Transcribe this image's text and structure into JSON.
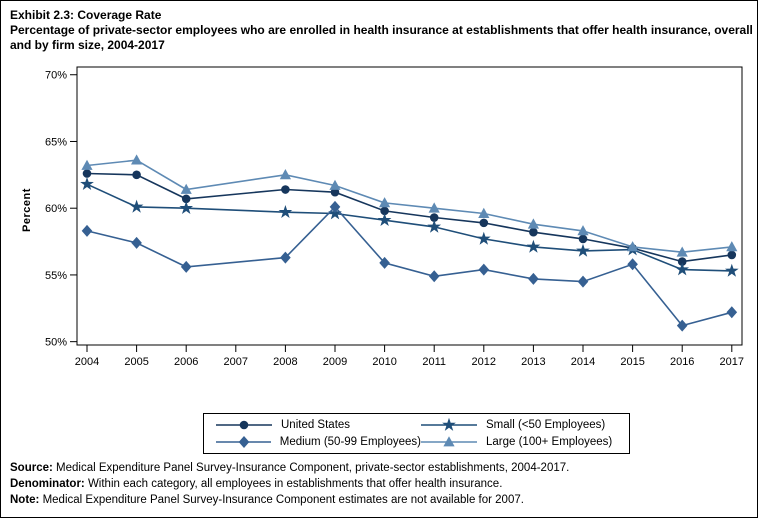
{
  "figure": {
    "title": "Exhibit 2.3: Coverage Rate",
    "subtitle": "Percentage of private-sector employees who are enrolled in health insurance at establishments that offer health insurance, overall and by firm size, 2004-2017"
  },
  "chart_data": {
    "type": "line",
    "title": "Exhibit 2.3: Coverage Rate",
    "subtitle": "Percentage of private-sector employees who are enrolled in health insurance at establishments that offer health insurance, overall and by firm size, 2004-2017",
    "xlabel": "",
    "ylabel": "Percent",
    "x": [
      2004,
      2005,
      2006,
      2007,
      2008,
      2009,
      2010,
      2011,
      2012,
      2013,
      2014,
      2015,
      2016,
      2017
    ],
    "y_ticks": [
      70,
      65,
      60,
      55,
      50
    ],
    "y_tick_labels": [
      "70%",
      "65%",
      "60%",
      "55%",
      "50%"
    ],
    "ylim": [
      49.75,
      70.58
    ],
    "grid": false,
    "legend_position": "bottom",
    "note": "No data for 2007",
    "series": [
      {
        "name": "United States",
        "marker": "circle",
        "color": "#16365C",
        "values": [
          62.6,
          62.5,
          60.7,
          null,
          61.4,
          61.2,
          59.8,
          59.3,
          58.9,
          58.2,
          57.7,
          57.0,
          56.0,
          56.5
        ]
      },
      {
        "name": "Small (<50 Employees)",
        "marker": "star",
        "color": "#1F4E79",
        "values": [
          61.8,
          60.1,
          60.0,
          null,
          59.7,
          59.6,
          59.1,
          58.6,
          57.7,
          57.1,
          56.8,
          56.9,
          55.4,
          55.3
        ]
      },
      {
        "name": "Medium (50-99 Employees)",
        "marker": "diamond",
        "color": "#366092",
        "values": [
          58.3,
          57.4,
          55.6,
          null,
          56.3,
          60.1,
          55.9,
          54.9,
          55.4,
          54.7,
          54.5,
          55.8,
          51.2,
          52.2
        ]
      },
      {
        "name": "Large (100+ Employees)",
        "marker": "triangle",
        "color": "#5E8AB4",
        "values": [
          63.2,
          63.6,
          61.4,
          null,
          62.5,
          61.7,
          60.4,
          60.0,
          59.6,
          58.8,
          58.3,
          57.1,
          56.7,
          57.1
        ]
      }
    ]
  },
  "legend": {
    "entries": [
      {
        "label": "United States",
        "marker": "circle",
        "color": "#16365C"
      },
      {
        "label": "Small (<50 Employees)",
        "marker": "star",
        "color": "#1F4E79"
      },
      {
        "label": "Medium (50-99 Employees)",
        "marker": "diamond",
        "color": "#366092"
      },
      {
        "label": "Large (100+ Employees)",
        "marker": "triangle",
        "color": "#5E8AB4"
      }
    ]
  },
  "footer": {
    "source_label": "Source:",
    "source_text": " Medical Expenditure Panel Survey-Insurance Component, private-sector establishments, 2004-2017.",
    "denominator_label": "Denominator:",
    "denominator_text": " Within each category, all employees in establishments that offer health insurance.",
    "note_label": "Note:",
    "note_text": " Medical Expenditure Panel Survey-Insurance Component estimates are not available for 2007."
  }
}
